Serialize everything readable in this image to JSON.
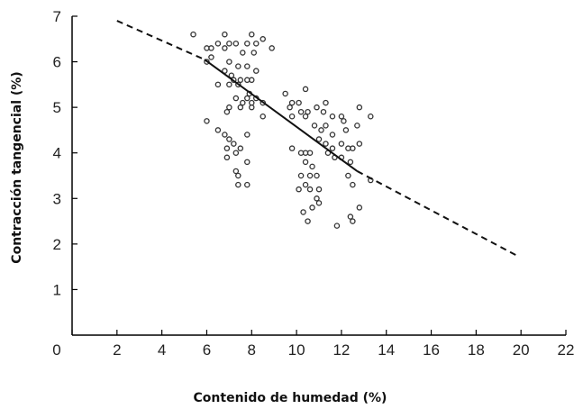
{
  "chart_data": {
    "type": "scatter",
    "xlabel": "Contenido de humedad (%)",
    "ylabel": "Contracción tangencial (%)",
    "xlim": [
      0,
      22
    ],
    "ylim": [
      0,
      7
    ],
    "x_ticks": [
      0,
      2,
      4,
      6,
      8,
      10,
      12,
      14,
      16,
      18,
      20,
      22
    ],
    "y_ticks": [
      1,
      2,
      3,
      4,
      5,
      6,
      7
    ],
    "grid": false,
    "legend": "none",
    "colors": {
      "points": "#333333",
      "line": "#111111",
      "axis": "#000000"
    },
    "series": [
      {
        "kind": "points",
        "marker": "open-circle",
        "points": [
          [
            5.4,
            6.6
          ],
          [
            6.0,
            6.3
          ],
          [
            6.2,
            6.3
          ],
          [
            6.5,
            6.4
          ],
          [
            6.8,
            6.6
          ],
          [
            7.0,
            6.4
          ],
          [
            7.3,
            6.4
          ],
          [
            7.8,
            6.4
          ],
          [
            8.0,
            6.6
          ],
          [
            8.2,
            6.4
          ],
          [
            8.5,
            6.5
          ],
          [
            8.9,
            6.3
          ],
          [
            6.0,
            6.0
          ],
          [
            6.2,
            6.1
          ],
          [
            6.8,
            6.3
          ],
          [
            7.6,
            6.2
          ],
          [
            8.1,
            6.2
          ],
          [
            8.2,
            5.8
          ],
          [
            7.0,
            6.0
          ],
          [
            7.4,
            5.9
          ],
          [
            7.8,
            5.9
          ],
          [
            8.0,
            5.6
          ],
          [
            6.8,
            5.8
          ],
          [
            7.1,
            5.7
          ],
          [
            7.2,
            5.6
          ],
          [
            7.5,
            5.6
          ],
          [
            7.8,
            5.6
          ],
          [
            6.5,
            5.5
          ],
          [
            7.0,
            5.5
          ],
          [
            7.4,
            5.5
          ],
          [
            7.9,
            5.3
          ],
          [
            7.3,
            5.2
          ],
          [
            7.8,
            5.2
          ],
          [
            8.2,
            5.2
          ],
          [
            7.6,
            5.1
          ],
          [
            8.0,
            5.1
          ],
          [
            8.5,
            5.1
          ],
          [
            7.0,
            5.0
          ],
          [
            7.5,
            5.0
          ],
          [
            8.0,
            5.0
          ],
          [
            6.9,
            4.9
          ],
          [
            8.5,
            4.8
          ],
          [
            6.0,
            4.7
          ],
          [
            6.5,
            4.5
          ],
          [
            6.8,
            4.4
          ],
          [
            7.0,
            4.3
          ],
          [
            6.9,
            4.1
          ],
          [
            7.8,
            4.4
          ],
          [
            7.2,
            4.2
          ],
          [
            7.5,
            4.1
          ],
          [
            6.9,
            3.9
          ],
          [
            7.3,
            4.0
          ],
          [
            7.8,
            3.8
          ],
          [
            7.3,
            3.6
          ],
          [
            7.4,
            3.5
          ],
          [
            7.8,
            3.3
          ],
          [
            7.4,
            3.3
          ],
          [
            9.5,
            5.3
          ],
          [
            9.8,
            5.1
          ],
          [
            10.1,
            5.1
          ],
          [
            10.4,
            5.4
          ],
          [
            9.7,
            5.0
          ],
          [
            10.2,
            4.9
          ],
          [
            10.5,
            4.9
          ],
          [
            10.9,
            5.0
          ],
          [
            11.2,
            4.9
          ],
          [
            11.3,
            5.1
          ],
          [
            11.6,
            4.8
          ],
          [
            12.0,
            4.8
          ],
          [
            12.1,
            4.7
          ],
          [
            12.8,
            5.0
          ],
          [
            13.3,
            4.8
          ],
          [
            9.8,
            4.8
          ],
          [
            10.4,
            4.8
          ],
          [
            10.8,
            4.6
          ],
          [
            11.1,
            4.5
          ],
          [
            11.3,
            4.6
          ],
          [
            11.6,
            4.4
          ],
          [
            12.2,
            4.5
          ],
          [
            12.7,
            4.6
          ],
          [
            11.0,
            4.3
          ],
          [
            11.3,
            4.2
          ],
          [
            11.6,
            4.1
          ],
          [
            12.0,
            4.2
          ],
          [
            12.3,
            4.1
          ],
          [
            12.5,
            4.1
          ],
          [
            12.8,
            4.2
          ],
          [
            9.8,
            4.1
          ],
          [
            10.2,
            4.0
          ],
          [
            10.4,
            4.0
          ],
          [
            10.6,
            4.0
          ],
          [
            11.4,
            4.0
          ],
          [
            11.7,
            3.9
          ],
          [
            12.0,
            3.9
          ],
          [
            12.4,
            3.8
          ],
          [
            10.4,
            3.8
          ],
          [
            10.7,
            3.7
          ],
          [
            10.2,
            3.5
          ],
          [
            10.6,
            3.5
          ],
          [
            10.9,
            3.5
          ],
          [
            12.3,
            3.5
          ],
          [
            13.3,
            3.4
          ],
          [
            10.4,
            3.3
          ],
          [
            10.1,
            3.2
          ],
          [
            10.6,
            3.2
          ],
          [
            11.0,
            3.2
          ],
          [
            12.5,
            3.3
          ],
          [
            10.9,
            3.0
          ],
          [
            11.0,
            2.9
          ],
          [
            10.7,
            2.8
          ],
          [
            12.8,
            2.8
          ],
          [
            10.3,
            2.7
          ],
          [
            12.4,
            2.6
          ],
          [
            10.5,
            2.5
          ],
          [
            12.5,
            2.5
          ],
          [
            11.8,
            2.4
          ]
        ]
      },
      {
        "kind": "line",
        "style": "dashed",
        "x": [
          2.0,
          5.9
        ],
        "y": [
          6.9,
          6.05
        ]
      },
      {
        "kind": "line",
        "style": "solid",
        "x": [
          5.9,
          12.7
        ],
        "y": [
          6.05,
          3.6
        ]
      },
      {
        "kind": "line",
        "style": "dashed",
        "x": [
          12.7,
          19.8
        ],
        "y": [
          3.6,
          1.75
        ]
      }
    ]
  }
}
